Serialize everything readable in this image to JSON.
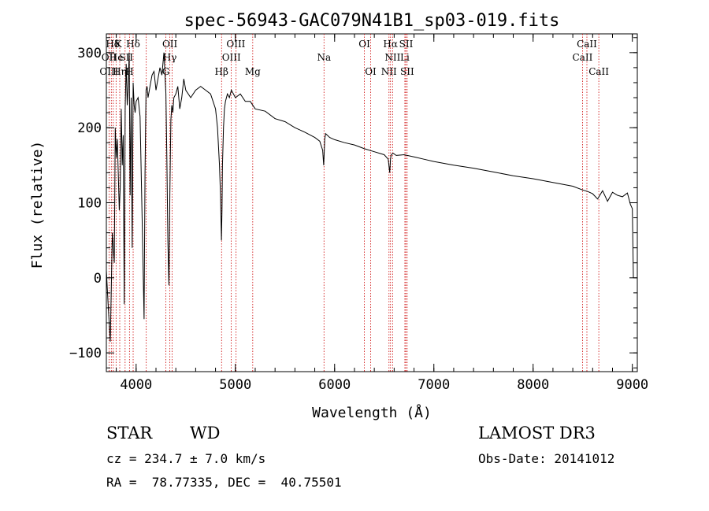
{
  "chart_data": {
    "type": "line",
    "title": "spec-56943-GAC079N41B1_sp03-019.fits",
    "xlabel": "Wavelength (Å)",
    "ylabel": "Flux (relative)",
    "xlim": [
      3700,
      9050
    ],
    "ylim": [
      -125,
      325
    ],
    "xticks": [
      4000,
      5000,
      6000,
      7000,
      8000,
      9000
    ],
    "yticks": [
      -100,
      0,
      100,
      200,
      300
    ],
    "series": [
      {
        "name": "flux",
        "x": [
          3700,
          3720,
          3740,
          3760,
          3780,
          3790,
          3800,
          3810,
          3820,
          3830,
          3840,
          3850,
          3860,
          3870,
          3880,
          3890,
          3900,
          3910,
          3920,
          3930,
          3940,
          3950,
          3960,
          3970,
          3980,
          3990,
          4000,
          4020,
          4040,
          4060,
          4080,
          4090,
          4100,
          4110,
          4120,
          4140,
          4160,
          4180,
          4200,
          4220,
          4240,
          4260,
          4280,
          4300,
          4310,
          4320,
          4330,
          4340,
          4350,
          4360,
          4370,
          4380,
          4400,
          4420,
          4440,
          4460,
          4480,
          4500,
          4550,
          4600,
          4650,
          4700,
          4750,
          4800,
          4820,
          4840,
          4850,
          4860,
          4865,
          4870,
          4880,
          4890,
          4900,
          4920,
          4940,
          4960,
          4980,
          5000,
          5050,
          5100,
          5150,
          5200,
          5300,
          5400,
          5500,
          5600,
          5700,
          5800,
          5850,
          5880,
          5890,
          5895,
          5900,
          5910,
          5950,
          6000,
          6100,
          6200,
          6300,
          6400,
          6500,
          6540,
          6555,
          6563,
          6570,
          6590,
          6620,
          6700,
          6800,
          6900,
          7000,
          7200,
          7400,
          7600,
          7800,
          8000,
          8200,
          8400,
          8500,
          8550,
          8600,
          8650,
          8700,
          8750,
          8800,
          8850,
          8900,
          8950,
          8980,
          9000,
          9010
        ],
        "values": [
          10,
          -40,
          -85,
          60,
          20,
          200,
          160,
          185,
          140,
          90,
          120,
          225,
          150,
          190,
          -35,
          225,
          285,
          230,
          255,
          300,
          110,
          240,
          40,
          260,
          230,
          220,
          235,
          240,
          215,
          80,
          -55,
          140,
          250,
          255,
          240,
          255,
          270,
          275,
          250,
          265,
          280,
          270,
          300,
          245,
          160,
          50,
          -10,
          110,
          210,
          230,
          220,
          240,
          245,
          255,
          225,
          240,
          265,
          250,
          240,
          250,
          255,
          250,
          245,
          225,
          200,
          150,
          110,
          50,
          90,
          150,
          200,
          225,
          235,
          245,
          240,
          250,
          245,
          240,
          245,
          235,
          235,
          225,
          222,
          212,
          208,
          200,
          194,
          187,
          182,
          170,
          150,
          165,
          185,
          192,
          187,
          184,
          180,
          177,
          172,
          168,
          164,
          158,
          140,
          158,
          164,
          166,
          163,
          164,
          161,
          158,
          155,
          150,
          146,
          141,
          136,
          132,
          127,
          122,
          117,
          115,
          112,
          105,
          116,
          102,
          114,
          110,
          108,
          113,
          98,
          92,
          0
        ]
      }
    ],
    "emission_lines": [
      {
        "label": "Hδ",
        "x": 3765,
        "tier": 0
      },
      {
        "label": "K",
        "x": 3820,
        "tier": 0
      },
      {
        "label": "Hδ",
        "x": 3970,
        "tier": 0
      },
      {
        "label": "OII",
        "x": 4340,
        "tier": 0
      },
      {
        "label": "OIII",
        "x": 5005,
        "tier": 0
      },
      {
        "label": "OI",
        "x": 6300,
        "tier": 0
      },
      {
        "label": "Hα",
        "x": 6563,
        "tier": 0
      },
      {
        "label": "SII",
        "x": 6720,
        "tier": 0
      },
      {
        "label": "CaII",
        "x": 8542,
        "tier": 0
      },
      {
        "label": "OII",
        "x": 3727,
        "tier": 1
      },
      {
        "label": "He",
        "x": 3800,
        "tier": 1
      },
      {
        "label": "SII",
        "x": 3900,
        "tier": 1
      },
      {
        "label": "Hγ",
        "x": 4340,
        "tier": 1
      },
      {
        "label": "OIII",
        "x": 4960,
        "tier": 1
      },
      {
        "label": "Na",
        "x": 5893,
        "tier": 1
      },
      {
        "label": "NII",
        "x": 6584,
        "tier": 1
      },
      {
        "label": "Li",
        "x": 6708,
        "tier": 1
      },
      {
        "label": "CaII",
        "x": 8498,
        "tier": 1
      },
      {
        "label": "OIII",
        "x": 3727,
        "tier": 2
      },
      {
        "label": "Hη",
        "x": 3835,
        "tier": 2
      },
      {
        "label": "H",
        "x": 3933,
        "tier": 2
      },
      {
        "label": "G",
        "x": 4300,
        "tier": 2
      },
      {
        "label": "Hβ",
        "x": 4861,
        "tier": 2
      },
      {
        "label": "Mg",
        "x": 5175,
        "tier": 2
      },
      {
        "label": "OI",
        "x": 6363,
        "tier": 2
      },
      {
        "label": "NII",
        "x": 6548,
        "tier": 2
      },
      {
        "label": "SII",
        "x": 6731,
        "tier": 2
      },
      {
        "label": "CaII",
        "x": 8662,
        "tier": 2
      }
    ],
    "line_markers_x": [
      3727,
      3750,
      3770,
      3798,
      3835,
      3889,
      3933,
      3970,
      4102,
      4300,
      4340,
      4363,
      4861,
      4959,
      5007,
      5175,
      5893,
      6300,
      6363,
      6548,
      6563,
      6584,
      6708,
      6717,
      6731,
      8498,
      8542,
      8662
    ]
  },
  "info": {
    "class": "STAR",
    "subclass": "WD",
    "survey": "LAMOST DR3",
    "cz": "cz = 234.7 ± 7.0 km/s",
    "obs_date": "Obs-Date: 20141012",
    "radec": "RA =  78.77335, DEC =  40.75501"
  }
}
